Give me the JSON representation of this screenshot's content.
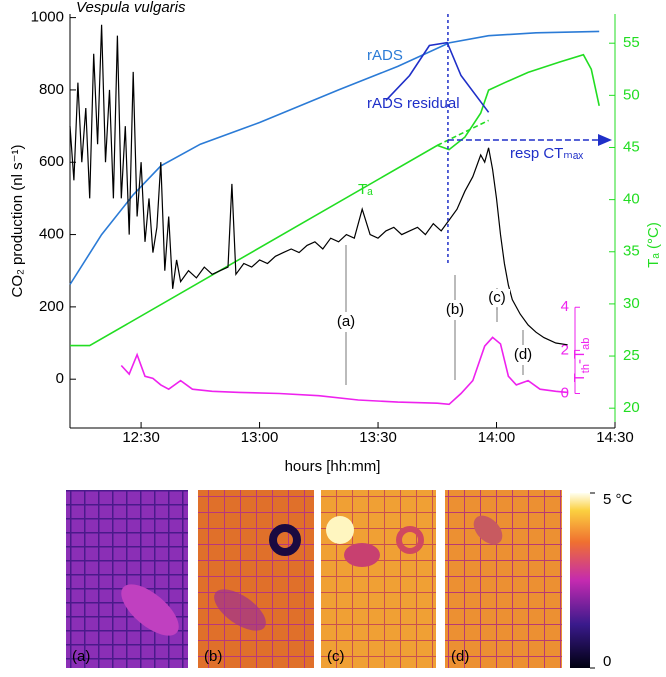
{
  "chart_data": {
    "type": "line",
    "title": "Vespula vulgaris",
    "xlabel": "hours [hh:mm]",
    "ylabel": "CO₂ production (nl s⁻¹)",
    "y2label": "Tₐ (°C)",
    "y3label": [
      {
        "text": "T"
      },
      {
        "text": "th",
        "sub": true
      },
      {
        "text": "-T"
      },
      {
        "text": "ab",
        "sub": true
      }
    ],
    "xlim": [
      732,
      870
    ],
    "xticks": [
      {
        "value": 750,
        "label": "12:30"
      },
      {
        "value": 780,
        "label": "13:00"
      },
      {
        "value": 810,
        "label": "13:30"
      },
      {
        "value": 840,
        "label": "14:00"
      },
      {
        "value": 870,
        "label": "14:30"
      }
    ],
    "ylim": [
      -135,
      1010
    ],
    "yticks": [
      0,
      200,
      400,
      600,
      800,
      1000
    ],
    "y2lim": [
      18.1,
      57.8
    ],
    "y2ticks": [
      20,
      25,
      30,
      35,
      40,
      45,
      50,
      55
    ],
    "y2color": "#22dd22",
    "y3lim": [
      -1.6,
      17.6
    ],
    "y3ticks": [
      0,
      2,
      4
    ],
    "y3color": "#ee22ee",
    "series": [
      {
        "name": "Tₐ",
        "color": "#22dd22",
        "axis": "y2",
        "x": [
          732,
          737,
          825,
          828,
          832,
          836,
          838,
          842,
          848,
          856,
          862,
          864,
          866
        ],
        "values": [
          26.0,
          26.0,
          45.2,
          44.8,
          46.0,
          48.3,
          50.5,
          51.2,
          52.2,
          53.2,
          53.9,
          52.5,
          49.0
        ]
      },
      {
        "color": "#22dd22",
        "axis": "y2",
        "dashed": true,
        "x": [
          825,
          838
        ],
        "values": [
          45.2,
          47.6
        ]
      },
      {
        "name": "rADS",
        "color": "#2b7bd6",
        "x": [
          732,
          740,
          748,
          755,
          765,
          780,
          800,
          815,
          828,
          838,
          850,
          866
        ],
        "values": [
          262,
          400,
          510,
          590,
          650,
          710,
          800,
          865,
          930,
          950,
          958,
          962
        ]
      },
      {
        "name": "rADS residual",
        "color": "#1f2fc8",
        "x": [
          812,
          818,
          823,
          827.5,
          831,
          838
        ],
        "values": [
          771,
          840,
          923,
          931,
          840,
          738
        ]
      },
      {
        "color": "#000000",
        "x": [
          732,
          733,
          734,
          735,
          736,
          737,
          738,
          739,
          740,
          741,
          742,
          743,
          744,
          745,
          746,
          747,
          748,
          749,
          750,
          751,
          752,
          753,
          754,
          755,
          756,
          757,
          758,
          759,
          760,
          762,
          764,
          766,
          768,
          770,
          772,
          773,
          774,
          776,
          778,
          780,
          782,
          784,
          786,
          788,
          790,
          792,
          794,
          796,
          798,
          800,
          802,
          804,
          806,
          808,
          810,
          812,
          814,
          816,
          818,
          820,
          822,
          824,
          826,
          828,
          830,
          832,
          834,
          836,
          837,
          838,
          839,
          840,
          841,
          842,
          843,
          844,
          846,
          848,
          850,
          852,
          855,
          858
        ],
        "values": [
          700,
          550,
          820,
          600,
          750,
          500,
          900,
          650,
          980,
          600,
          800,
          500,
          950,
          500,
          700,
          400,
          850,
          450,
          600,
          380,
          500,
          350,
          420,
          600,
          300,
          450,
          250,
          330,
          270,
          300,
          280,
          310,
          290,
          300,
          310,
          540,
          290,
          320,
          310,
          330,
          320,
          340,
          350,
          360,
          350,
          370,
          380,
          360,
          390,
          380,
          400,
          390,
          470,
          400,
          390,
          410,
          420,
          400,
          410,
          420,
          400,
          430,
          410,
          440,
          470,
          520,
          560,
          620,
          600,
          640,
          580,
          500,
          400,
          320,
          260,
          220,
          180,
          150,
          130,
          115,
          100,
          95
        ]
      },
      {
        "color": "#ee22ee",
        "axis": "y3",
        "x": [
          745,
          747,
          749,
          751,
          753,
          755,
          757,
          760,
          763,
          768,
          775,
          785,
          795,
          805,
          815,
          825,
          828,
          831,
          834,
          837,
          839,
          841,
          843,
          845,
          848,
          851,
          855,
          858
        ],
        "values": [
          1.3,
          0.9,
          1.8,
          0.8,
          0.7,
          0.4,
          0.2,
          0.6,
          0.2,
          0.1,
          0.05,
          0,
          -0.1,
          -0.3,
          -0.4,
          -0.45,
          -0.5,
          0,
          0.6,
          2.2,
          2.6,
          2.3,
          0.8,
          0.4,
          0.6,
          0.2,
          0.1,
          0.05
        ]
      }
    ],
    "annotations": {
      "labels": [
        "(a)",
        "(b)",
        "(c)",
        "(d)"
      ],
      "resp_ct_max": "resp CTₘₐₓ",
      "ct_max_time": 827.7
    },
    "images": {
      "labels": [
        "(a)",
        "(b)",
        "(c)",
        "(d)"
      ],
      "clim": [
        0,
        5
      ],
      "colorbar_ticks": [
        {
          "value": 5,
          "label": "5 °C"
        },
        0
      ]
    }
  }
}
